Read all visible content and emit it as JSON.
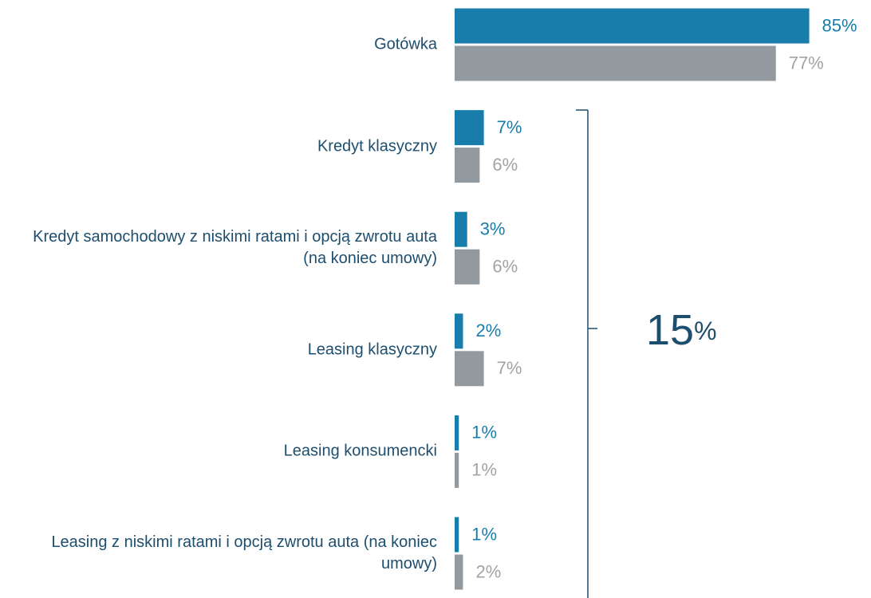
{
  "chart_data": {
    "type": "bar",
    "orientation": "horizontal",
    "categories": [
      "Gotówka",
      "Kredyt klasyczny",
      "Kredyt samochodowy z niskimi ratami i opcją zwrotu auta (na koniec umowy)",
      "Leasing klasyczny",
      "Leasing konsumencki",
      "Leasing z niskimi ratami i opcją zwrotu auta (na koniec umowy)"
    ],
    "series": [
      {
        "color": "#187dab",
        "values": [
          85,
          7,
          3,
          2,
          1,
          1
        ],
        "value_labels": [
          "85%",
          "7%",
          "3%",
          "2%",
          "1%",
          "1%"
        ]
      },
      {
        "color": "#939a9f",
        "values": [
          77,
          6,
          6,
          7,
          1,
          2
        ],
        "value_labels": [
          "77%",
          "6%",
          "6%",
          "7%",
          "1%",
          "2%"
        ]
      }
    ],
    "annotation": [
      "15",
      "%"
    ]
  }
}
